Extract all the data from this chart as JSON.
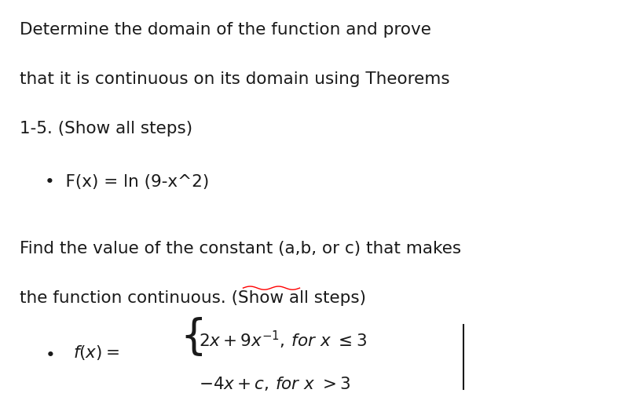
{
  "bg_color": "#ffffff",
  "fig_width": 8.03,
  "fig_height": 5.29,
  "dpi": 100,
  "line1": "Determine the domain of the function and prove",
  "line2": "that it is continuous on its domain using Theorems",
  "line3": "1-5. (Show all steps)",
  "bullet1_prefix": "•  F(x) = ln (9-x^2)",
  "line4": "Find the value of the constant (a,b, or c) that makes",
  "line5": "the function continuous. (Show all steps)",
  "text_color": "#1a1a1a",
  "font_size_main": 15.5,
  "font_size_bullet": 15.5,
  "font_size_math": 15.5
}
